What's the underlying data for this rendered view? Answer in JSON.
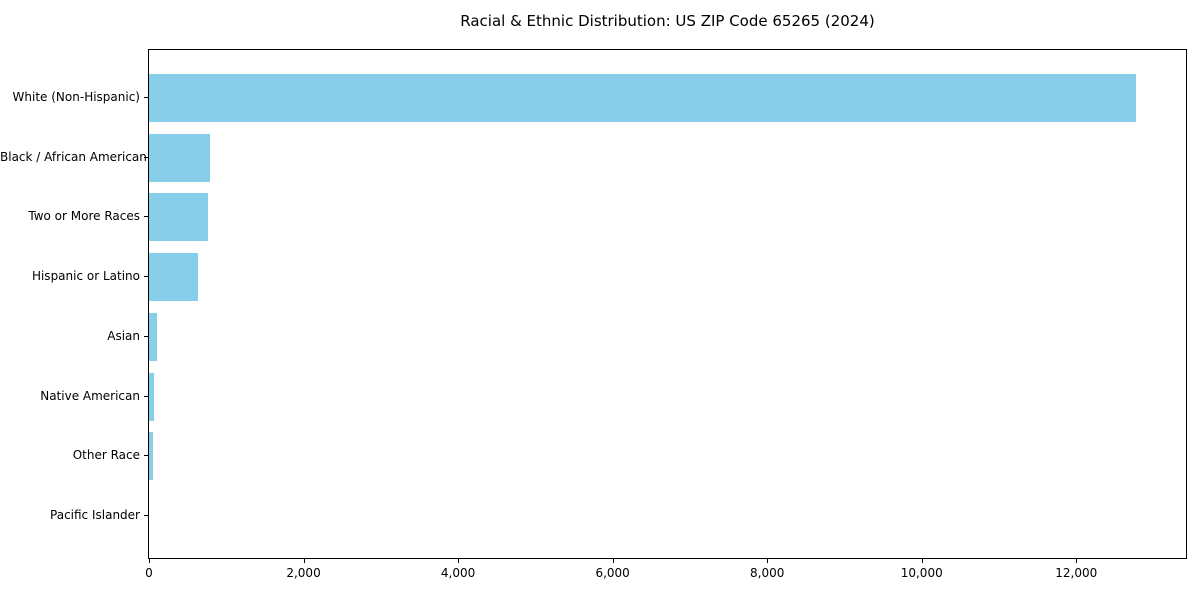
{
  "title": "Racial & Ethnic Distribution: US ZIP Code 65265 (2024)",
  "chart_data": {
    "type": "bar",
    "orientation": "horizontal",
    "title": "Racial & Ethnic Distribution: US ZIP Code 65265 (2024)",
    "xlabel": "",
    "ylabel": "",
    "categories": [
      "White (Non-Hispanic)",
      "Black / African American",
      "Two or More Races",
      "Hispanic or Latino",
      "Asian",
      "Native American",
      "Other Race",
      "Pacific Islander"
    ],
    "values": [
      12770,
      790,
      760,
      640,
      100,
      70,
      55,
      0
    ],
    "bar_color": "#87CEEB",
    "xlim": [
      0,
      13420
    ],
    "x_ticks": [
      0,
      2000,
      4000,
      6000,
      8000,
      10000,
      12000
    ],
    "x_tick_labels": [
      "0",
      "2,000",
      "4,000",
      "6,000",
      "8,000",
      "10,000",
      "12,000"
    ],
    "grid": false,
    "legend": false,
    "axis_color": "#000000",
    "text_color": "#000000",
    "background_color": "#ffffff"
  }
}
